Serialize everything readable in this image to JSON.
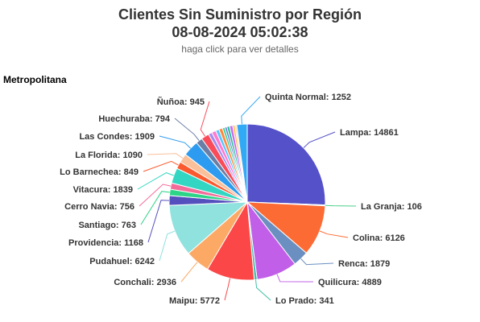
{
  "header": {
    "title_line1": "Clientes Sin Suministro por Región",
    "title_line2": "08-08-2024 05:02:38",
    "subtitle": "haga click para ver detalles"
  },
  "region": "Metropolitana",
  "chart_data": {
    "type": "pie",
    "start_angle_deg": 0,
    "slices": [
      {
        "name": "Lampa",
        "value": 14861,
        "color": "#5451c9"
      },
      {
        "name": "La Granja",
        "value": 106,
        "color": "#4ccf8a"
      },
      {
        "name": "Colina",
        "value": 6126,
        "color": "#fd6b35"
      },
      {
        "name": "Renca",
        "value": 1879,
        "color": "#6b8fc1"
      },
      {
        "name": "Quilicura",
        "value": 4889,
        "color": "#c15fe8"
      },
      {
        "name": "Lo Prado",
        "value": 341,
        "color": "#3fbfa9"
      },
      {
        "name": "Maipu",
        "value": 5772,
        "color": "#fb4747"
      },
      {
        "name": "Conchali",
        "value": 2936,
        "color": "#fca966"
      },
      {
        "name": "Pudahuel",
        "value": 6242,
        "color": "#8fe2de"
      },
      {
        "name": "Providencia",
        "value": 1168,
        "color": "#5450be"
      },
      {
        "name": "Santiago",
        "value": 763,
        "color": "#2bd487"
      },
      {
        "name": "Cerro Navia",
        "value": 756,
        "color": "#f46b9a"
      },
      {
        "name": "Vitacura",
        "value": 1839,
        "color": "#33d6c2"
      },
      {
        "name": "Lo Barnechea",
        "value": 849,
        "color": "#fb5a2e"
      },
      {
        "name": "La Florida",
        "value": 1090,
        "color": "#f9c09a"
      },
      {
        "name": "Las Condes",
        "value": 1909,
        "color": "#2d9cf0"
      },
      {
        "name": "Huechuraba",
        "value": 794,
        "color": "#6a7ea6"
      },
      {
        "name": "Ñuñoa",
        "value": 945,
        "color": "#fa4b5a"
      },
      {
        "name": "",
        "value": 450,
        "color": "#a68cf2"
      },
      {
        "name": "",
        "value": 500,
        "color": "#ff7ad1"
      },
      {
        "name": "",
        "value": 420,
        "color": "#5cc7ff"
      },
      {
        "name": "",
        "value": 430,
        "color": "#ff8a3d"
      },
      {
        "name": "",
        "value": 300,
        "color": "#3ed2a0"
      },
      {
        "name": "",
        "value": 250,
        "color": "#6b6bd6"
      },
      {
        "name": "",
        "value": 330,
        "color": "#2dbf9f"
      },
      {
        "name": "",
        "value": 380,
        "color": "#c86df0"
      },
      {
        "name": "",
        "value": 260,
        "color": "#ffb347"
      },
      {
        "name": "",
        "value": 230,
        "color": "#fdd9b5"
      },
      {
        "name": "Quinta Normal",
        "value": 1252,
        "color": "#32a9f5"
      }
    ]
  }
}
